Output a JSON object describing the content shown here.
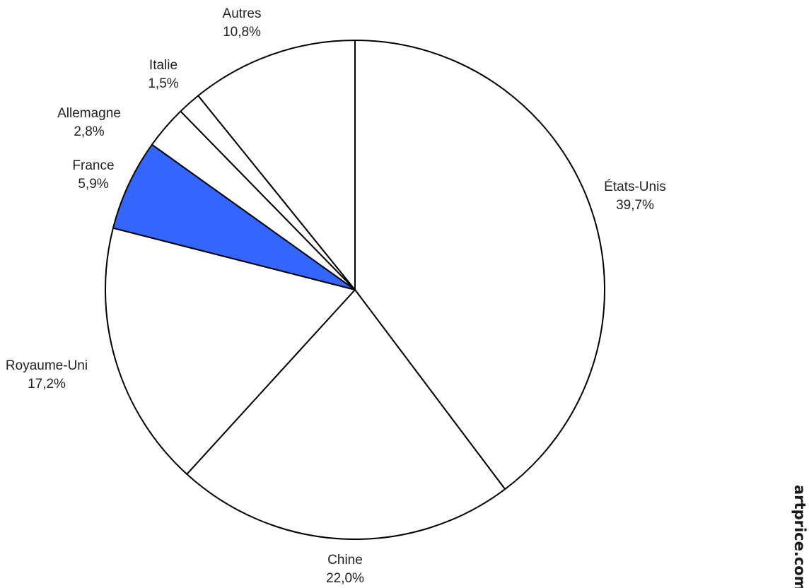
{
  "chart_data": {
    "type": "pie",
    "start_angle_deg": 0,
    "direction": "clockwise",
    "slices": [
      {
        "label": "États-Unis",
        "value": 39.7,
        "value_text": "39,7%",
        "color": "#ffffff"
      },
      {
        "label": "Chine",
        "value": 22.0,
        "value_text": "22,0%",
        "color": "#ffffff"
      },
      {
        "label": "Royaume-Uni",
        "value": 17.2,
        "value_text": "17,2%",
        "color": "#ffffff"
      },
      {
        "label": "France",
        "value": 5.9,
        "value_text": "5,9%",
        "color": "#3366ff"
      },
      {
        "label": "Allemagne",
        "value": 2.8,
        "value_text": "2,8%",
        "color": "#ffffff"
      },
      {
        "label": "Italie",
        "value": 1.5,
        "value_text": "1,5%",
        "color": "#ffffff"
      },
      {
        "label": "Autres",
        "value": 10.8,
        "value_text": "10,8%",
        "color": "#ffffff"
      }
    ]
  },
  "watermark": {
    "text": "artprice.com"
  }
}
